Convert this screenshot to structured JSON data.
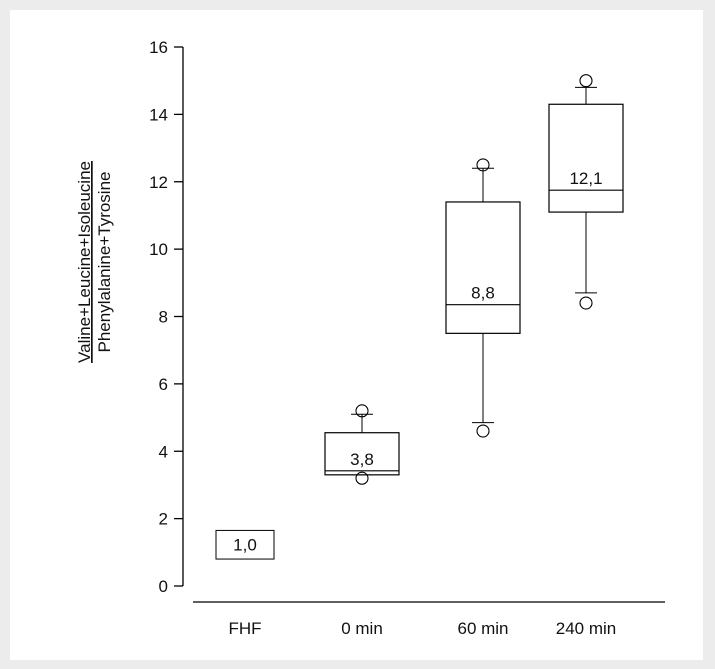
{
  "chart_data": {
    "type": "box",
    "ylabel_numerator": "Valine+Leucine+Isoleucine",
    "ylabel_denominator": "Phenylalanine+Tyrosine",
    "ylim": [
      0,
      16
    ],
    "yticks": [
      0,
      2,
      4,
      6,
      8,
      10,
      12,
      14,
      16
    ],
    "categories": [
      "FHF",
      "0 min",
      "60 min",
      "240 min"
    ],
    "boxes": [
      {
        "category": "FHF",
        "label": "1,0",
        "q1": 0.8,
        "median": 1.0,
        "q3": 1.65,
        "whisker_low": null,
        "whisker_high": null,
        "outliers": [],
        "label_only": true
      },
      {
        "category": "0 min",
        "label": "3,8",
        "q1": 3.3,
        "median": 3.42,
        "q3": 4.55,
        "whisker_low": 3.3,
        "whisker_high": 5.1,
        "outliers": [
          3.2,
          5.2
        ]
      },
      {
        "category": "60 min",
        "label": "8,8",
        "q1": 7.5,
        "median": 8.35,
        "q3": 11.4,
        "whisker_low": 4.85,
        "whisker_high": 12.4,
        "outliers": [
          4.6,
          12.5
        ]
      },
      {
        "category": "240 min",
        "label": "12,1",
        "q1": 11.1,
        "median": 11.75,
        "q3": 14.3,
        "whisker_low": 8.7,
        "whisker_high": 14.8,
        "outliers": [
          8.4,
          15.0
        ]
      }
    ]
  }
}
